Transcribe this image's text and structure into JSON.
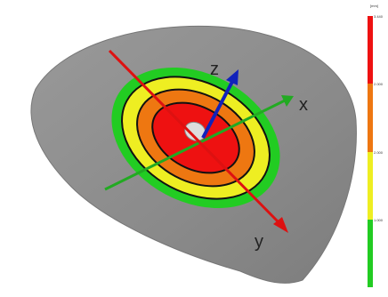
{
  "axes": {
    "x_label": "x",
    "y_label": "y",
    "z_label": "z"
  },
  "colors": {
    "background": "#ffffff",
    "surface": "#8a8a8a",
    "surface_edge": "#7a7a7a",
    "band_green": "#22cc22",
    "band_yellow": "#eeee22",
    "band_orange": "#ee7711",
    "band_red": "#ee1111",
    "contour": "#111111",
    "axis_x": "#22aa22",
    "axis_y": "#dd1111",
    "axis_z": "#1122bb"
  },
  "colorbar": {
    "unit": "[mm]",
    "max_label": "3.440",
    "segments": [
      {
        "color": "#ee1111",
        "label": "2.000"
      },
      {
        "color": "#ee7711",
        "label": "2.000"
      },
      {
        "color": "#eeee22",
        "label": "1.000"
      },
      {
        "color": "#22cc22",
        "label": ""
      }
    ]
  }
}
